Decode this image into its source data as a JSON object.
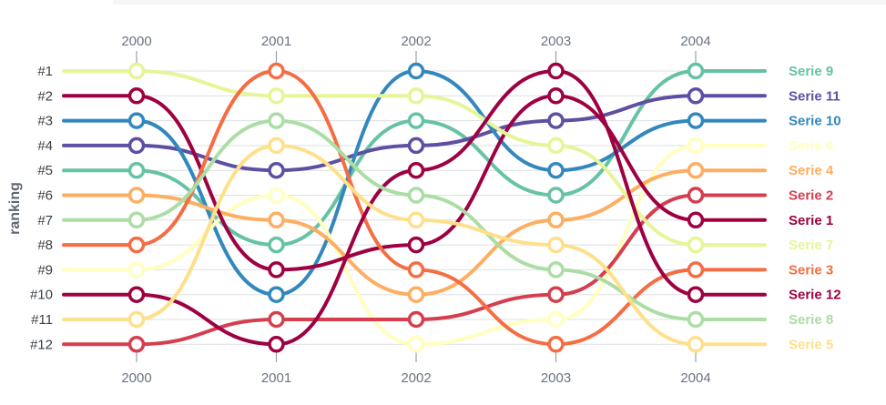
{
  "chart_data": {
    "type": "line",
    "title": "",
    "xlabel": "",
    "ylabel": "ranking",
    "x": [
      "2000",
      "2001",
      "2002",
      "2003",
      "2004"
    ],
    "y_categories": [
      "#1",
      "#2",
      "#3",
      "#4",
      "#5",
      "#6",
      "#7",
      "#8",
      "#9",
      "#10",
      "#11",
      "#12"
    ],
    "ylim": [
      1,
      12
    ],
    "y_reversed": true,
    "grid": true,
    "x_axis_position": "top and bottom",
    "legend": "labels at right end of each line",
    "series": [
      {
        "name": "Serie 9",
        "color": "#66c2a5",
        "values": [
          5,
          8,
          3,
          6,
          1
        ]
      },
      {
        "name": "Serie 11",
        "color": "#5e4fa2",
        "values": [
          4,
          5,
          4,
          3,
          2
        ]
      },
      {
        "name": "Serie 10",
        "color": "#3288bd",
        "values": [
          3,
          10,
          1,
          5,
          3
        ]
      },
      {
        "name": "Serie 6",
        "color": "#ffffbf",
        "values": [
          9,
          6,
          12,
          11,
          4
        ]
      },
      {
        "name": "Serie 4",
        "color": "#fdae61",
        "values": [
          6,
          7,
          10,
          7,
          5
        ]
      },
      {
        "name": "Serie 2",
        "color": "#d53e4f",
        "values": [
          12,
          11,
          11,
          10,
          6
        ]
      },
      {
        "name": "Serie 1",
        "color": "#9e0142",
        "values": [
          2,
          9,
          8,
          2,
          7
        ]
      },
      {
        "name": "Serie 7",
        "color": "#e6f598",
        "values": [
          1,
          2,
          2,
          4,
          8
        ]
      },
      {
        "name": "Serie 3",
        "color": "#f46d43",
        "values": [
          8,
          1,
          9,
          12,
          9
        ]
      },
      {
        "name": "Serie 12",
        "color": "#9e0142",
        "values": [
          10,
          12,
          5,
          1,
          10
        ]
      },
      {
        "name": "Serie 8",
        "color": "#abdda4",
        "values": [
          7,
          3,
          6,
          9,
          11
        ]
      },
      {
        "name": "Serie 5",
        "color": "#fee08b",
        "values": [
          11,
          4,
          7,
          8,
          12
        ]
      }
    ]
  }
}
